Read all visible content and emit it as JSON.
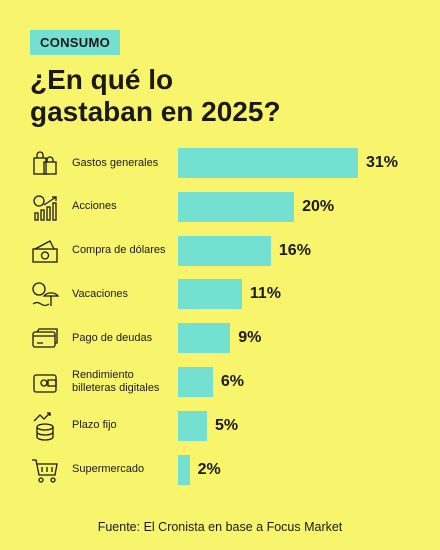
{
  "chart_data": {
    "type": "bar",
    "orientation": "horizontal",
    "tag": "CONSUMO",
    "title": "¿En qué lo gastaban en 2025?",
    "categories": [
      "Gastos generales",
      "Acciones",
      "Compra de dólares",
      "Vacaciones",
      "Pago de deudas",
      "Rendimiento billeteras digitales",
      "Plazo fijo",
      "Supermercado"
    ],
    "values": [
      31,
      20,
      16,
      11,
      9,
      6,
      5,
      2
    ],
    "value_labels": [
      "31%",
      "20%",
      "16%",
      "11%",
      "9%",
      "6%",
      "5%",
      "2%"
    ],
    "color": "#74e0d2",
    "source": "Fuente: El Cronista en base a Focus Market"
  }
}
